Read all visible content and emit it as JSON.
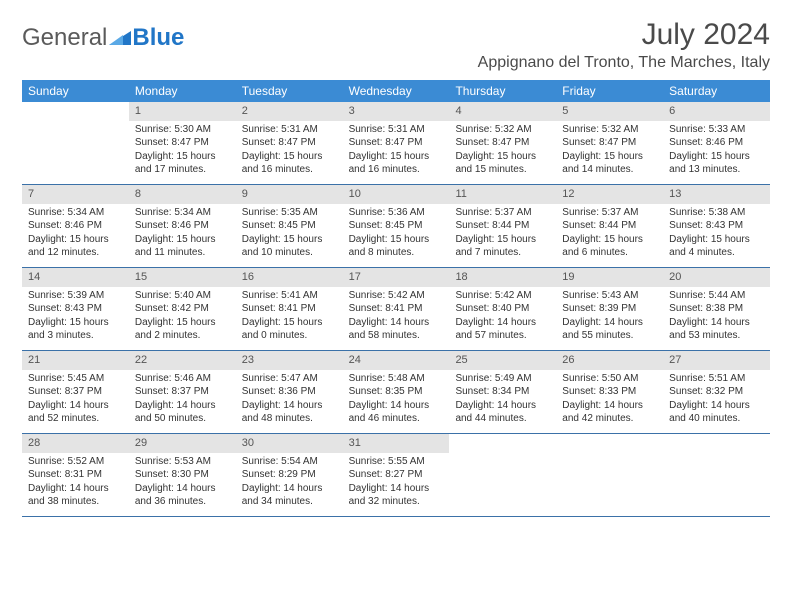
{
  "brand": {
    "part1": "General",
    "part2": "Blue"
  },
  "title": "July 2024",
  "location": "Appignano del Tronto, The Marches, Italy",
  "colors": {
    "header_bg": "#3b8bd4",
    "header_text": "#ffffff",
    "daynum_bg": "#e4e4e4",
    "row_border": "#3b71a8",
    "body_text": "#333333",
    "title_text": "#4a4a4a",
    "logo_gray": "#5a5a5a",
    "logo_blue": "#2176c7"
  },
  "weekdays": [
    "Sunday",
    "Monday",
    "Tuesday",
    "Wednesday",
    "Thursday",
    "Friday",
    "Saturday"
  ],
  "weeks": [
    [
      {
        "n": "",
        "sr": "",
        "ss": "",
        "dl": ""
      },
      {
        "n": "1",
        "sr": "Sunrise: 5:30 AM",
        "ss": "Sunset: 8:47 PM",
        "dl": "Daylight: 15 hours and 17 minutes."
      },
      {
        "n": "2",
        "sr": "Sunrise: 5:31 AM",
        "ss": "Sunset: 8:47 PM",
        "dl": "Daylight: 15 hours and 16 minutes."
      },
      {
        "n": "3",
        "sr": "Sunrise: 5:31 AM",
        "ss": "Sunset: 8:47 PM",
        "dl": "Daylight: 15 hours and 16 minutes."
      },
      {
        "n": "4",
        "sr": "Sunrise: 5:32 AM",
        "ss": "Sunset: 8:47 PM",
        "dl": "Daylight: 15 hours and 15 minutes."
      },
      {
        "n": "5",
        "sr": "Sunrise: 5:32 AM",
        "ss": "Sunset: 8:47 PM",
        "dl": "Daylight: 15 hours and 14 minutes."
      },
      {
        "n": "6",
        "sr": "Sunrise: 5:33 AM",
        "ss": "Sunset: 8:46 PM",
        "dl": "Daylight: 15 hours and 13 minutes."
      }
    ],
    [
      {
        "n": "7",
        "sr": "Sunrise: 5:34 AM",
        "ss": "Sunset: 8:46 PM",
        "dl": "Daylight: 15 hours and 12 minutes."
      },
      {
        "n": "8",
        "sr": "Sunrise: 5:34 AM",
        "ss": "Sunset: 8:46 PM",
        "dl": "Daylight: 15 hours and 11 minutes."
      },
      {
        "n": "9",
        "sr": "Sunrise: 5:35 AM",
        "ss": "Sunset: 8:45 PM",
        "dl": "Daylight: 15 hours and 10 minutes."
      },
      {
        "n": "10",
        "sr": "Sunrise: 5:36 AM",
        "ss": "Sunset: 8:45 PM",
        "dl": "Daylight: 15 hours and 8 minutes."
      },
      {
        "n": "11",
        "sr": "Sunrise: 5:37 AM",
        "ss": "Sunset: 8:44 PM",
        "dl": "Daylight: 15 hours and 7 minutes."
      },
      {
        "n": "12",
        "sr": "Sunrise: 5:37 AM",
        "ss": "Sunset: 8:44 PM",
        "dl": "Daylight: 15 hours and 6 minutes."
      },
      {
        "n": "13",
        "sr": "Sunrise: 5:38 AM",
        "ss": "Sunset: 8:43 PM",
        "dl": "Daylight: 15 hours and 4 minutes."
      }
    ],
    [
      {
        "n": "14",
        "sr": "Sunrise: 5:39 AM",
        "ss": "Sunset: 8:43 PM",
        "dl": "Daylight: 15 hours and 3 minutes."
      },
      {
        "n": "15",
        "sr": "Sunrise: 5:40 AM",
        "ss": "Sunset: 8:42 PM",
        "dl": "Daylight: 15 hours and 2 minutes."
      },
      {
        "n": "16",
        "sr": "Sunrise: 5:41 AM",
        "ss": "Sunset: 8:41 PM",
        "dl": "Daylight: 15 hours and 0 minutes."
      },
      {
        "n": "17",
        "sr": "Sunrise: 5:42 AM",
        "ss": "Sunset: 8:41 PM",
        "dl": "Daylight: 14 hours and 58 minutes."
      },
      {
        "n": "18",
        "sr": "Sunrise: 5:42 AM",
        "ss": "Sunset: 8:40 PM",
        "dl": "Daylight: 14 hours and 57 minutes."
      },
      {
        "n": "19",
        "sr": "Sunrise: 5:43 AM",
        "ss": "Sunset: 8:39 PM",
        "dl": "Daylight: 14 hours and 55 minutes."
      },
      {
        "n": "20",
        "sr": "Sunrise: 5:44 AM",
        "ss": "Sunset: 8:38 PM",
        "dl": "Daylight: 14 hours and 53 minutes."
      }
    ],
    [
      {
        "n": "21",
        "sr": "Sunrise: 5:45 AM",
        "ss": "Sunset: 8:37 PM",
        "dl": "Daylight: 14 hours and 52 minutes."
      },
      {
        "n": "22",
        "sr": "Sunrise: 5:46 AM",
        "ss": "Sunset: 8:37 PM",
        "dl": "Daylight: 14 hours and 50 minutes."
      },
      {
        "n": "23",
        "sr": "Sunrise: 5:47 AM",
        "ss": "Sunset: 8:36 PM",
        "dl": "Daylight: 14 hours and 48 minutes."
      },
      {
        "n": "24",
        "sr": "Sunrise: 5:48 AM",
        "ss": "Sunset: 8:35 PM",
        "dl": "Daylight: 14 hours and 46 minutes."
      },
      {
        "n": "25",
        "sr": "Sunrise: 5:49 AM",
        "ss": "Sunset: 8:34 PM",
        "dl": "Daylight: 14 hours and 44 minutes."
      },
      {
        "n": "26",
        "sr": "Sunrise: 5:50 AM",
        "ss": "Sunset: 8:33 PM",
        "dl": "Daylight: 14 hours and 42 minutes."
      },
      {
        "n": "27",
        "sr": "Sunrise: 5:51 AM",
        "ss": "Sunset: 8:32 PM",
        "dl": "Daylight: 14 hours and 40 minutes."
      }
    ],
    [
      {
        "n": "28",
        "sr": "Sunrise: 5:52 AM",
        "ss": "Sunset: 8:31 PM",
        "dl": "Daylight: 14 hours and 38 minutes."
      },
      {
        "n": "29",
        "sr": "Sunrise: 5:53 AM",
        "ss": "Sunset: 8:30 PM",
        "dl": "Daylight: 14 hours and 36 minutes."
      },
      {
        "n": "30",
        "sr": "Sunrise: 5:54 AM",
        "ss": "Sunset: 8:29 PM",
        "dl": "Daylight: 14 hours and 34 minutes."
      },
      {
        "n": "31",
        "sr": "Sunrise: 5:55 AM",
        "ss": "Sunset: 8:27 PM",
        "dl": "Daylight: 14 hours and 32 minutes."
      },
      {
        "n": "",
        "sr": "",
        "ss": "",
        "dl": ""
      },
      {
        "n": "",
        "sr": "",
        "ss": "",
        "dl": ""
      },
      {
        "n": "",
        "sr": "",
        "ss": "",
        "dl": ""
      }
    ]
  ]
}
